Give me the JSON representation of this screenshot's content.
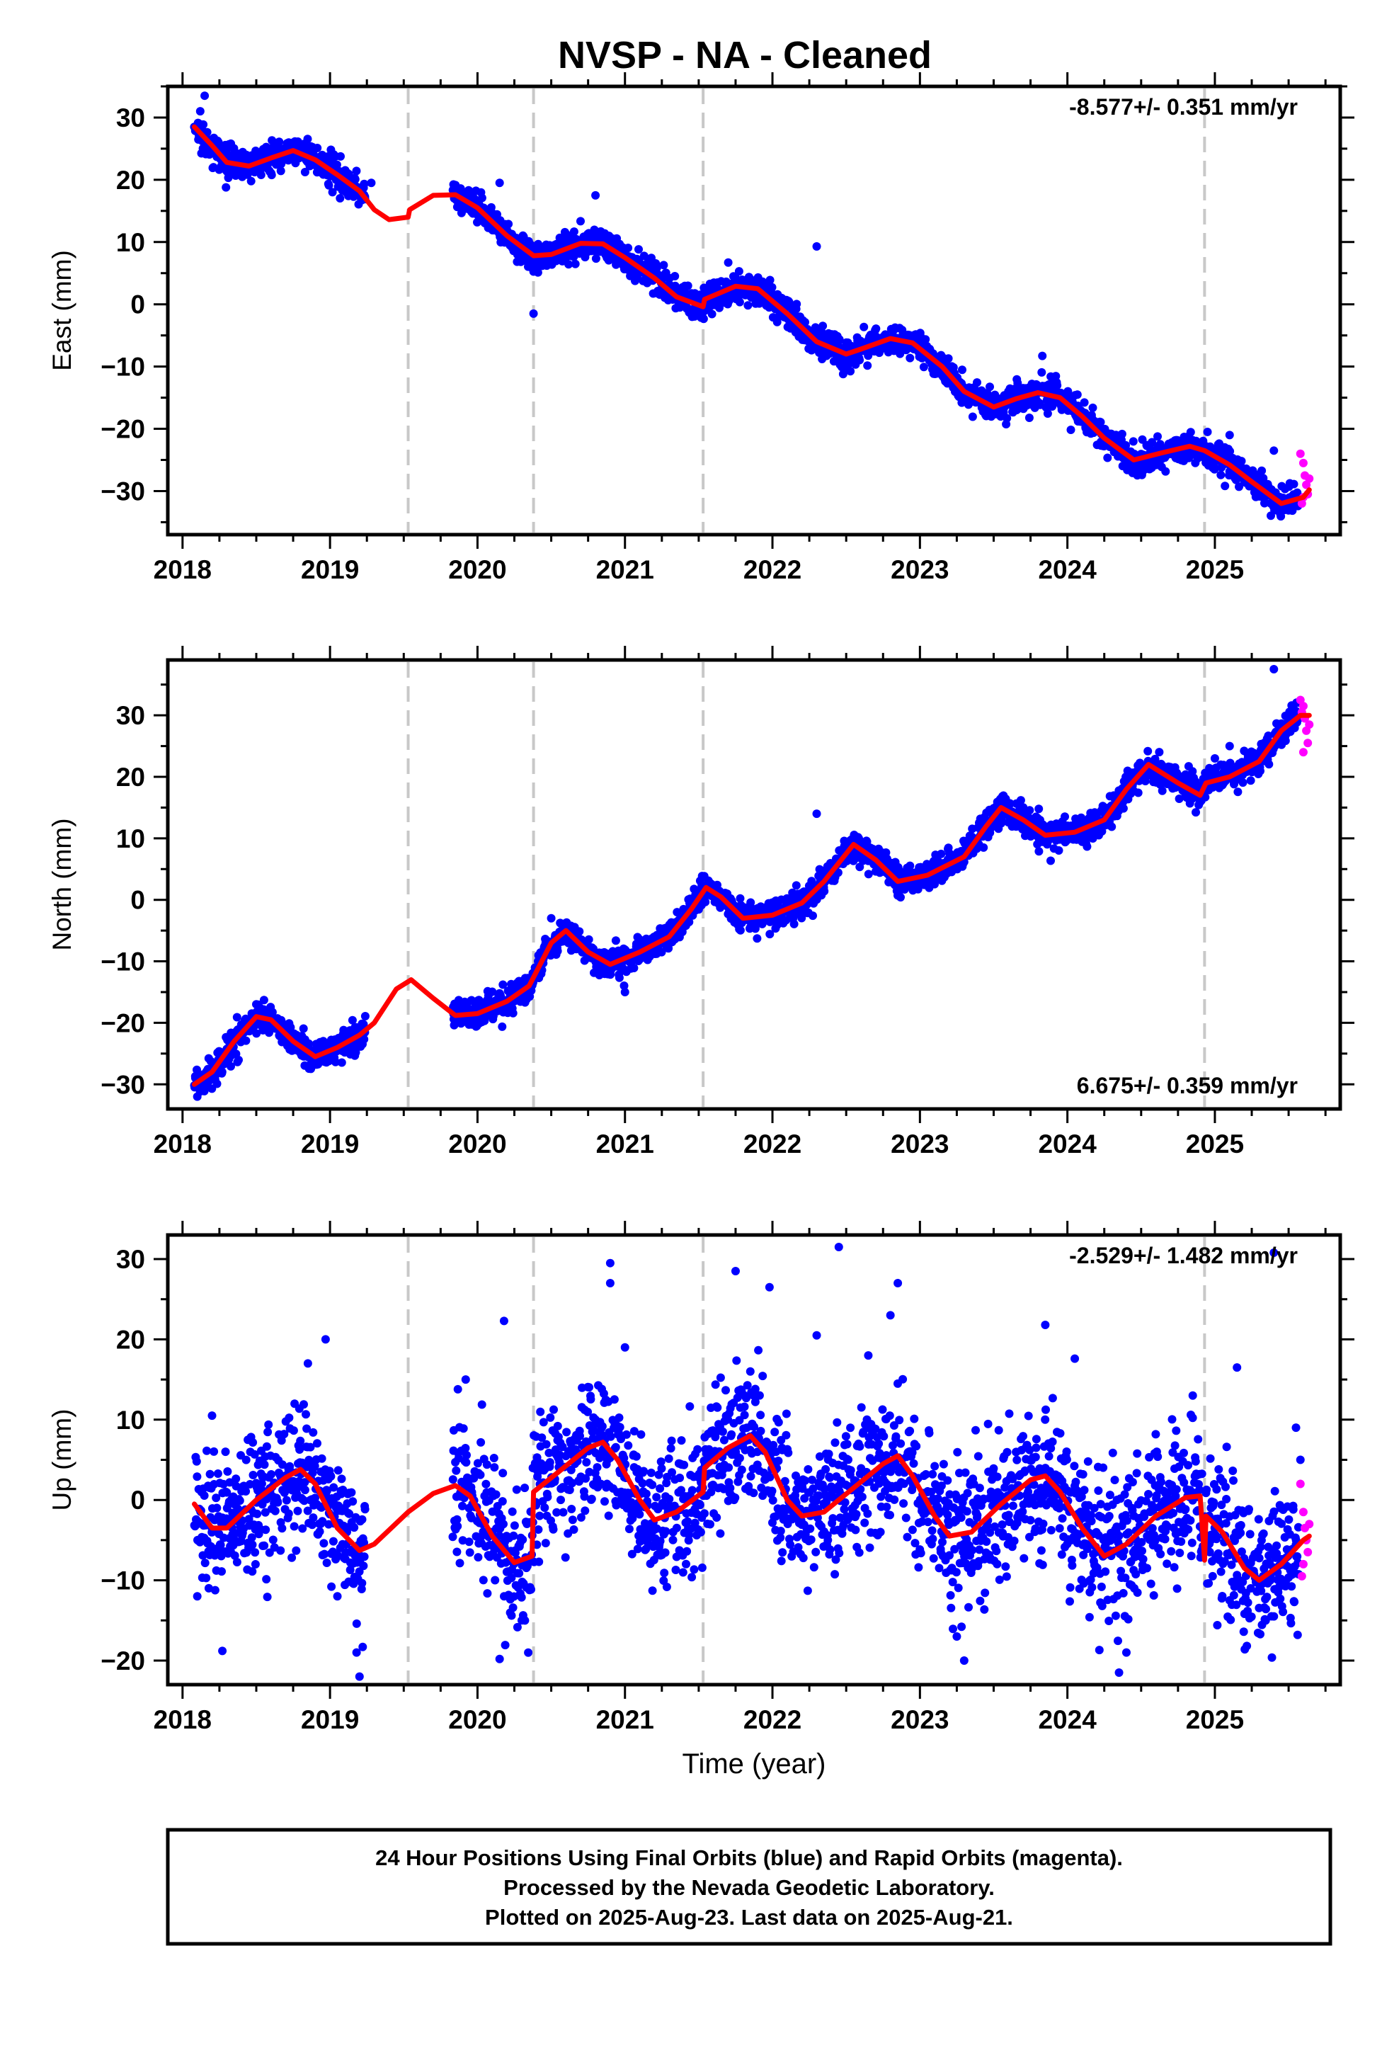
{
  "title": "NVSP  - NA - Cleaned",
  "footer": {
    "lines": [
      "24 Hour Positions Using Final Orbits (blue) and Rapid Orbits (magenta).",
      "Processed by the Nevada Geodetic Laboratory.",
      "Plotted on 2025-Aug-23. Last data on 2025-Aug-21."
    ]
  },
  "colors": {
    "final_orbits": "#0000ff",
    "rapid_orbits": "#ff00ff",
    "model": "#ff0000",
    "event_lines": "#c8c8c8",
    "frame": "#000000"
  },
  "chart_data": [
    {
      "type": "scatter",
      "name": "east",
      "ylabel": "East (mm)",
      "xlabel": "",
      "rate_label": "-8.577+/- 0.351 mm/yr",
      "rate_position": "top-right",
      "xlim": [
        2017.9,
        2025.85
      ],
      "ylim": [
        -37,
        35
      ],
      "xticks": [
        2018,
        2019,
        2020,
        2021,
        2022,
        2023,
        2024,
        2025
      ],
      "yticks": [
        -30,
        -20,
        -10,
        0,
        10,
        20,
        30
      ],
      "event_lines": [
        2019.53,
        2020.38,
        2021.53,
        2024.93
      ],
      "final_range": [
        2018.08,
        2025.57
      ],
      "rapid_range": [
        2025.57,
        2025.64
      ],
      "gaps": [
        [
          2019.24,
          2019.83
        ]
      ],
      "scatter_sd": 1.2,
      "model_curve": [
        [
          2018.08,
          28.5
        ],
        [
          2018.2,
          25.5
        ],
        [
          2018.3,
          22.8
        ],
        [
          2018.45,
          22.2
        ],
        [
          2018.6,
          23.5
        ],
        [
          2018.75,
          24.7
        ],
        [
          2018.9,
          23.2
        ],
        [
          2019.05,
          20.8
        ],
        [
          2019.2,
          18.2
        ],
        [
          2019.3,
          15.2
        ],
        [
          2019.4,
          13.6
        ],
        [
          2019.53,
          14.0
        ],
        [
          2019.54,
          15.2
        ],
        [
          2019.7,
          17.5
        ],
        [
          2019.85,
          17.6
        ],
        [
          2020.0,
          15.5
        ],
        [
          2020.2,
          11.0
        ],
        [
          2020.38,
          7.8
        ],
        [
          2020.5,
          8.0
        ],
        [
          2020.7,
          9.8
        ],
        [
          2020.85,
          9.7
        ],
        [
          2021.0,
          7.5
        ],
        [
          2021.2,
          4.2
        ],
        [
          2021.35,
          1.2
        ],
        [
          2021.53,
          -0.4
        ],
        [
          2021.54,
          0.8
        ],
        [
          2021.75,
          2.9
        ],
        [
          2021.9,
          2.5
        ],
        [
          2022.1,
          -1.5
        ],
        [
          2022.3,
          -6.0
        ],
        [
          2022.5,
          -8.0
        ],
        [
          2022.6,
          -7.2
        ],
        [
          2022.8,
          -5.5
        ],
        [
          2022.95,
          -6.2
        ],
        [
          2023.15,
          -10.0
        ],
        [
          2023.3,
          -14.0
        ],
        [
          2023.5,
          -16.5
        ],
        [
          2023.65,
          -15.2
        ],
        [
          2023.8,
          -14.2
        ],
        [
          2023.95,
          -15.0
        ],
        [
          2024.1,
          -18.0
        ],
        [
          2024.25,
          -21.5
        ],
        [
          2024.45,
          -25.0
        ],
        [
          2024.65,
          -23.8
        ],
        [
          2024.83,
          -22.8
        ],
        [
          2024.93,
          -23.5
        ],
        [
          2025.1,
          -25.8
        ],
        [
          2025.25,
          -28.5
        ],
        [
          2025.45,
          -32.0
        ],
        [
          2025.6,
          -31.0
        ],
        [
          2025.64,
          -29.8
        ]
      ],
      "outliers": [
        [
          2018.15,
          33.5
        ],
        [
          2018.12,
          31.0
        ],
        [
          2019.28,
          19.5
        ],
        [
          2020.15,
          19.5
        ],
        [
          2020.38,
          -1.5
        ],
        [
          2020.8,
          17.5
        ],
        [
          2022.3,
          9.3
        ],
        [
          2023.83,
          -8.3
        ],
        [
          2024.95,
          -20.5
        ],
        [
          2025.1,
          -21.0
        ],
        [
          2025.4,
          -23.5
        ],
        [
          2025.2,
          -28.5
        ]
      ],
      "rapid_points": [
        [
          2025.58,
          -24.0
        ],
        [
          2025.6,
          -25.5
        ],
        [
          2025.61,
          -27.5
        ],
        [
          2025.62,
          -29.0
        ],
        [
          2025.63,
          -30.5
        ],
        [
          2025.59,
          -32.0
        ],
        [
          2025.64,
          -28.0
        ],
        [
          2025.6,
          -31.0
        ]
      ]
    },
    {
      "type": "scatter",
      "name": "north",
      "ylabel": "North (mm)",
      "xlabel": "",
      "rate_label": "6.675+/- 0.359 mm/yr",
      "rate_position": "bottom-right",
      "xlim": [
        2017.9,
        2025.85
      ],
      "ylim": [
        -34,
        39
      ],
      "xticks": [
        2018,
        2019,
        2020,
        2021,
        2022,
        2023,
        2024,
        2025
      ],
      "yticks": [
        -30,
        -20,
        -10,
        0,
        10,
        20,
        30
      ],
      "event_lines": [
        2019.53,
        2020.38,
        2021.53,
        2024.93
      ],
      "final_range": [
        2018.08,
        2025.57
      ],
      "rapid_range": [
        2025.57,
        2025.64
      ],
      "gaps": [
        [
          2019.24,
          2019.83
        ]
      ],
      "scatter_sd": 1.2,
      "model_curve": [
        [
          2018.08,
          -30.0
        ],
        [
          2018.2,
          -28.0
        ],
        [
          2018.35,
          -23.0
        ],
        [
          2018.5,
          -19.0
        ],
        [
          2018.6,
          -19.5
        ],
        [
          2018.75,
          -23.0
        ],
        [
          2018.9,
          -25.5
        ],
        [
          2019.05,
          -24.0
        ],
        [
          2019.2,
          -22.0
        ],
        [
          2019.3,
          -20.0
        ],
        [
          2019.45,
          -14.5
        ],
        [
          2019.55,
          -13.0
        ],
        [
          2019.7,
          -16.0
        ],
        [
          2019.85,
          -18.8
        ],
        [
          2020.0,
          -18.5
        ],
        [
          2020.2,
          -16.5
        ],
        [
          2020.35,
          -14.0
        ],
        [
          2020.5,
          -7.0
        ],
        [
          2020.6,
          -5.0
        ],
        [
          2020.75,
          -8.5
        ],
        [
          2020.9,
          -10.5
        ],
        [
          2021.1,
          -8.5
        ],
        [
          2021.3,
          -6.0
        ],
        [
          2021.45,
          -1.5
        ],
        [
          2021.55,
          2.0
        ],
        [
          2021.65,
          0.5
        ],
        [
          2021.8,
          -3.0
        ],
        [
          2022.0,
          -2.5
        ],
        [
          2022.2,
          -0.5
        ],
        [
          2022.35,
          3.0
        ],
        [
          2022.55,
          9.0
        ],
        [
          2022.7,
          6.5
        ],
        [
          2022.85,
          3.0
        ],
        [
          2023.05,
          4.0
        ],
        [
          2023.3,
          7.0
        ],
        [
          2023.45,
          12.0
        ],
        [
          2023.55,
          15.0
        ],
        [
          2023.7,
          13.0
        ],
        [
          2023.85,
          10.5
        ],
        [
          2024.05,
          11.0
        ],
        [
          2024.25,
          13.0
        ],
        [
          2024.4,
          18.0
        ],
        [
          2024.55,
          22.0
        ],
        [
          2024.75,
          19.0
        ],
        [
          2024.9,
          17.0
        ],
        [
          2024.94,
          19.0
        ],
        [
          2025.1,
          20.0
        ],
        [
          2025.3,
          22.5
        ],
        [
          2025.45,
          27.5
        ],
        [
          2025.58,
          30.0
        ],
        [
          2025.64,
          30.0
        ]
      ],
      "outliers": [
        [
          2022.3,
          14.0
        ],
        [
          2021.0,
          -15.0
        ],
        [
          2020.5,
          -3.0
        ],
        [
          2018.1,
          -32.0
        ],
        [
          2025.4,
          37.5
        ],
        [
          2025.1,
          25.0
        ],
        [
          2025.0,
          23.0
        ],
        [
          2024.9,
          16.0
        ]
      ],
      "rapid_points": [
        [
          2025.58,
          32.5
        ],
        [
          2025.6,
          31.5
        ],
        [
          2025.61,
          29.5
        ],
        [
          2025.62,
          27.5
        ],
        [
          2025.63,
          25.5
        ],
        [
          2025.6,
          24.0
        ],
        [
          2025.64,
          28.5
        ],
        [
          2025.59,
          30.5
        ]
      ]
    },
    {
      "type": "scatter",
      "name": "up",
      "ylabel": "Up (mm)",
      "xlabel": "Time (year)",
      "rate_label": "-2.529+/- 1.482 mm/yr",
      "rate_position": "top-right",
      "xlim": [
        2017.9,
        2025.85
      ],
      "ylim": [
        -23,
        33
      ],
      "xticks": [
        2018,
        2019,
        2020,
        2021,
        2022,
        2023,
        2024,
        2025
      ],
      "yticks": [
        -20,
        -10,
        0,
        10,
        20,
        30
      ],
      "event_lines": [
        2019.53,
        2020.38,
        2021.53,
        2024.93
      ],
      "final_range": [
        2018.08,
        2025.57
      ],
      "rapid_range": [
        2025.57,
        2025.64
      ],
      "gaps": [
        [
          2019.24,
          2019.83
        ]
      ],
      "scatter_sd": 4.3,
      "model_curve": [
        [
          2018.08,
          -0.5
        ],
        [
          2018.2,
          -3.5
        ],
        [
          2018.3,
          -3.5
        ],
        [
          2018.5,
          0.0
        ],
        [
          2018.7,
          2.8
        ],
        [
          2018.8,
          3.8
        ],
        [
          2018.9,
          2.0
        ],
        [
          2019.05,
          -3.5
        ],
        [
          2019.2,
          -6.3
        ],
        [
          2019.3,
          -5.5
        ],
        [
          2019.53,
          -1.5
        ],
        [
          2019.7,
          0.8
        ],
        [
          2019.85,
          1.8
        ],
        [
          2019.95,
          0.5
        ],
        [
          2020.1,
          -4.5
        ],
        [
          2020.25,
          -7.8
        ],
        [
          2020.37,
          -7.0
        ],
        [
          2020.38,
          1.0
        ],
        [
          2020.55,
          3.5
        ],
        [
          2020.75,
          6.5
        ],
        [
          2020.85,
          7.2
        ],
        [
          2020.95,
          5.0
        ],
        [
          2021.1,
          0.0
        ],
        [
          2021.2,
          -2.5
        ],
        [
          2021.35,
          -1.5
        ],
        [
          2021.53,
          1.0
        ],
        [
          2021.54,
          4.0
        ],
        [
          2021.7,
          6.5
        ],
        [
          2021.85,
          8.0
        ],
        [
          2021.95,
          6.0
        ],
        [
          2022.1,
          0.0
        ],
        [
          2022.2,
          -2.0
        ],
        [
          2022.35,
          -1.5
        ],
        [
          2022.55,
          1.5
        ],
        [
          2022.75,
          4.5
        ],
        [
          2022.85,
          5.5
        ],
        [
          2022.95,
          3.0
        ],
        [
          2023.1,
          -2.0
        ],
        [
          2023.2,
          -4.5
        ],
        [
          2023.35,
          -4.0
        ],
        [
          2023.55,
          -0.5
        ],
        [
          2023.75,
          2.5
        ],
        [
          2023.85,
          3.0
        ],
        [
          2023.95,
          1.0
        ],
        [
          2024.1,
          -3.5
        ],
        [
          2024.25,
          -7.0
        ],
        [
          2024.4,
          -5.5
        ],
        [
          2024.6,
          -2.0
        ],
        [
          2024.8,
          0.3
        ],
        [
          2024.9,
          0.5
        ],
        [
          2024.93,
          -7.5
        ],
        [
          2024.94,
          -2.0
        ],
        [
          2025.05,
          -4.0
        ],
        [
          2025.2,
          -8.5
        ],
        [
          2025.3,
          -10.0
        ],
        [
          2025.45,
          -8.0
        ],
        [
          2025.6,
          -5.0
        ],
        [
          2025.64,
          -4.5
        ]
      ],
      "outliers": [
        [
          2018.1,
          -12.0
        ],
        [
          2018.2,
          10.5
        ],
        [
          2018.27,
          -18.8
        ],
        [
          2018.85,
          17.0
        ],
        [
          2018.97,
          20.0
        ],
        [
          2019.05,
          -12.0
        ],
        [
          2019.2,
          -22.0
        ],
        [
          2019.18,
          -19.0
        ],
        [
          2019.92,
          15.0
        ],
        [
          2020.18,
          22.3
        ],
        [
          2020.15,
          -19.8
        ],
        [
          2020.3,
          -15.0
        ],
        [
          2020.8,
          10.0
        ],
        [
          2020.9,
          29.5
        ],
        [
          2020.9,
          27.0
        ],
        [
          2021.0,
          19.0
        ],
        [
          2021.75,
          28.5
        ],
        [
          2021.85,
          16.0
        ],
        [
          2021.98,
          26.5
        ],
        [
          2022.3,
          20.5
        ],
        [
          2022.45,
          31.5
        ],
        [
          2022.8,
          23.0
        ],
        [
          2022.85,
          27.0
        ],
        [
          2022.65,
          18.0
        ],
        [
          2023.3,
          -20.0
        ],
        [
          2023.25,
          -17.0
        ],
        [
          2023.85,
          21.8
        ],
        [
          2024.05,
          17.6
        ],
        [
          2024.35,
          -21.5
        ],
        [
          2024.4,
          -19.0
        ],
        [
          2024.85,
          13.0
        ],
        [
          2025.15,
          16.5
        ],
        [
          2025.4,
          30.8
        ],
        [
          2025.1,
          -12.5
        ],
        [
          2025.4,
          -14.5
        ],
        [
          2025.55,
          9.0
        ],
        [
          2025.58,
          5.0
        ]
      ],
      "rapid_points": [
        [
          2025.58,
          2.0
        ],
        [
          2025.6,
          -1.5
        ],
        [
          2025.61,
          -3.5
        ],
        [
          2025.62,
          -5.0
        ],
        [
          2025.63,
          -6.5
        ],
        [
          2025.6,
          -8.0
        ],
        [
          2025.59,
          -9.5
        ],
        [
          2025.64,
          -3.0
        ]
      ]
    }
  ]
}
